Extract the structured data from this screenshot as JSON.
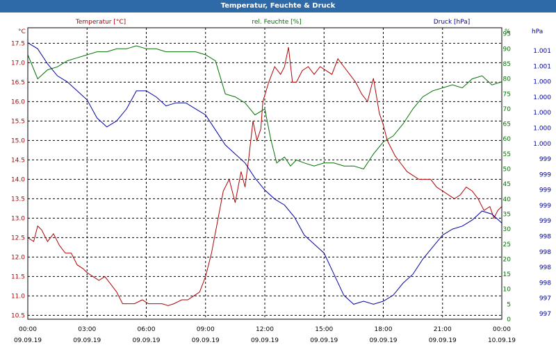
{
  "window": {
    "title": "Temperatur, Feuchte & Druck"
  },
  "chart_data": {
    "type": "line",
    "title": "Temperatur, Feuchte & Druck",
    "colors": {
      "temperature": "#b00000",
      "humidity": "#007000",
      "pressure": "#0000a0",
      "grid": "#000000",
      "titlebar": "#2f6aa8"
    },
    "x_axis": {
      "range_hours": [
        0,
        24
      ],
      "ticks": [
        {
          "h": 0,
          "time": "00:00",
          "date": "09.09.19"
        },
        {
          "h": 3,
          "time": "03:00",
          "date": "09.09.19"
        },
        {
          "h": 6,
          "time": "06:00",
          "date": "09.09.19"
        },
        {
          "h": 9,
          "time": "09:00",
          "date": "09.09.19"
        },
        {
          "h": 12,
          "time": "12:00",
          "date": "09.09.19"
        },
        {
          "h": 15,
          "time": "15:00",
          "date": "09.09.19"
        },
        {
          "h": 18,
          "time": "18:00",
          "date": "09.09.19"
        },
        {
          "h": 21,
          "time": "21:00",
          "date": "09.09.19"
        },
        {
          "h": 24,
          "time": "00:00",
          "date": "10.09.19"
        }
      ]
    },
    "axes": {
      "temperature": {
        "label": "Temperatur [°C]",
        "unit": "°C",
        "range": [
          10.4,
          17.9
        ],
        "ticks": [
          "10.5",
          "11.0",
          "11.5",
          "12.0",
          "12.5",
          "13.0",
          "13.5",
          "14.0",
          "14.5",
          "15.0",
          "15.5",
          "16.0",
          "16.5",
          "17.0",
          "17.5"
        ]
      },
      "humidity": {
        "label": "rel. Feuchte [%]",
        "unit": "%",
        "range": [
          0,
          97
        ],
        "ticks": [
          "0",
          "5",
          "10",
          "15",
          "20",
          "25",
          "30",
          "35",
          "40",
          "45",
          "50",
          "55",
          "60",
          "65",
          "70",
          "75",
          "80",
          "85",
          "90",
          "95"
        ]
      },
      "pressure": {
        "label": "Druck [hPa]",
        "unit": "hPa",
        "ticks": [
          "997",
          "997",
          "998",
          "998",
          "998",
          "998",
          "999",
          "999",
          "999",
          "999",
          "999",
          "1.000",
          "1.000",
          "1.000",
          "1.000",
          "1.000",
          "1.001",
          "1.001"
        ]
      }
    },
    "series": [
      {
        "name": "Temperatur [°C]",
        "axis": "temperature",
        "x": [
          0,
          0.3,
          0.5,
          0.7,
          1.0,
          1.3,
          1.6,
          1.9,
          2.2,
          2.5,
          2.8,
          3.0,
          3.3,
          3.6,
          3.9,
          4.2,
          4.5,
          4.8,
          5.1,
          5.4,
          5.8,
          6.1,
          6.4,
          6.8,
          7.1,
          7.4,
          7.8,
          8.1,
          8.4,
          8.7,
          9.0,
          9.3,
          9.6,
          9.9,
          10.2,
          10.5,
          10.8,
          11.0,
          11.2,
          11.4,
          11.6,
          11.8,
          11.9,
          12.2,
          12.5,
          12.8,
          13.0,
          13.2,
          13.4,
          13.6,
          13.9,
          14.2,
          14.5,
          14.8,
          15.1,
          15.4,
          15.7,
          16.0,
          16.3,
          16.6,
          16.9,
          17.2,
          17.5,
          17.8,
          18.0,
          18.2,
          18.6,
          18.9,
          19.2,
          19.5,
          19.8,
          20.1,
          20.4,
          20.7,
          21.0,
          21.3,
          21.6,
          21.9,
          22.2,
          22.5,
          22.8,
          23.1,
          23.4,
          23.6,
          23.8,
          24.0
        ],
        "values": [
          12.5,
          12.4,
          12.8,
          12.7,
          12.4,
          12.6,
          12.3,
          12.1,
          12.1,
          11.8,
          11.7,
          11.6,
          11.5,
          11.4,
          11.5,
          11.3,
          11.1,
          10.8,
          10.8,
          10.8,
          10.9,
          10.8,
          10.8,
          10.8,
          10.75,
          10.8,
          10.9,
          10.9,
          11.0,
          11.1,
          11.5,
          12.1,
          12.9,
          13.7,
          14.0,
          13.4,
          14.2,
          13.8,
          14.6,
          15.5,
          15.0,
          15.3,
          16.0,
          16.5,
          16.9,
          16.7,
          16.9,
          17.4,
          16.5,
          16.5,
          16.8,
          16.9,
          16.7,
          16.9,
          16.8,
          16.7,
          17.1,
          16.9,
          16.7,
          16.5,
          16.2,
          16.0,
          16.6,
          15.7,
          15.4,
          15.0,
          14.6,
          14.4,
          14.2,
          14.1,
          14.0,
          14.0,
          14.0,
          13.8,
          13.7,
          13.6,
          13.5,
          13.6,
          13.8,
          13.7,
          13.5,
          13.2,
          13.3,
          13.0,
          13.2,
          13.3
        ],
        "color": "#b00000"
      },
      {
        "name": "rel. Feuchte [%]",
        "axis": "humidity",
        "x": [
          0,
          0.5,
          1.0,
          1.5,
          2.0,
          2.5,
          3.0,
          3.5,
          4.0,
          4.5,
          5.0,
          5.5,
          6.0,
          6.5,
          7.0,
          7.5,
          8.0,
          8.5,
          9.0,
          9.5,
          10.0,
          10.5,
          11.0,
          11.5,
          12.0,
          12.3,
          12.6,
          13.0,
          13.3,
          13.6,
          14.0,
          14.5,
          15.0,
          15.5,
          16.0,
          16.5,
          17.0,
          17.5,
          18.0,
          18.5,
          19.0,
          19.5,
          20.0,
          20.5,
          21.0,
          21.5,
          22.0,
          22.5,
          23.0,
          23.5,
          24.0
        ],
        "values": [
          88,
          80,
          83,
          84,
          86,
          87,
          88,
          89,
          89,
          90,
          90,
          91,
          90,
          90,
          89,
          89,
          89,
          89,
          88,
          86,
          75,
          74,
          72,
          68,
          70,
          60,
          52,
          54,
          51,
          53,
          52,
          51,
          52,
          52,
          51,
          51,
          50,
          55,
          59,
          61,
          65,
          70,
          74,
          76,
          77,
          78,
          77,
          80,
          81,
          78,
          79
        ],
        "color": "#007000"
      },
      {
        "name": "Druck [hPa]",
        "axis": "pressure",
        "x": [
          0,
          0.5,
          1.0,
          1.5,
          2.0,
          2.5,
          3.0,
          3.5,
          4.0,
          4.5,
          5.0,
          5.5,
          6.0,
          6.5,
          7.0,
          7.5,
          8.0,
          8.5,
          9.0,
          9.5,
          10.0,
          10.5,
          11.0,
          11.5,
          12.0,
          12.5,
          13.0,
          13.5,
          14.0,
          14.5,
          15.0,
          15.5,
          16.0,
          16.5,
          17.0,
          17.5,
          18.0,
          18.5,
          19.0,
          19.5,
          20.0,
          20.5,
          21.0,
          21.5,
          22.0,
          22.5,
          23.0,
          23.5,
          24.0
        ],
        "values": [
          92,
          90,
          85,
          81,
          79,
          76,
          73,
          67,
          64,
          66,
          70,
          76,
          76,
          74,
          71,
          72,
          72,
          70,
          68,
          63,
          58,
          55,
          52,
          47,
          43,
          40,
          38,
          34,
          28,
          25,
          22,
          15,
          8,
          5,
          6,
          5,
          6,
          8,
          12,
          15,
          20,
          24,
          28,
          30,
          31,
          33,
          36,
          35,
          32
        ],
        "scale_range": [
          0,
          97
        ],
        "color": "#0000a0"
      }
    ]
  }
}
